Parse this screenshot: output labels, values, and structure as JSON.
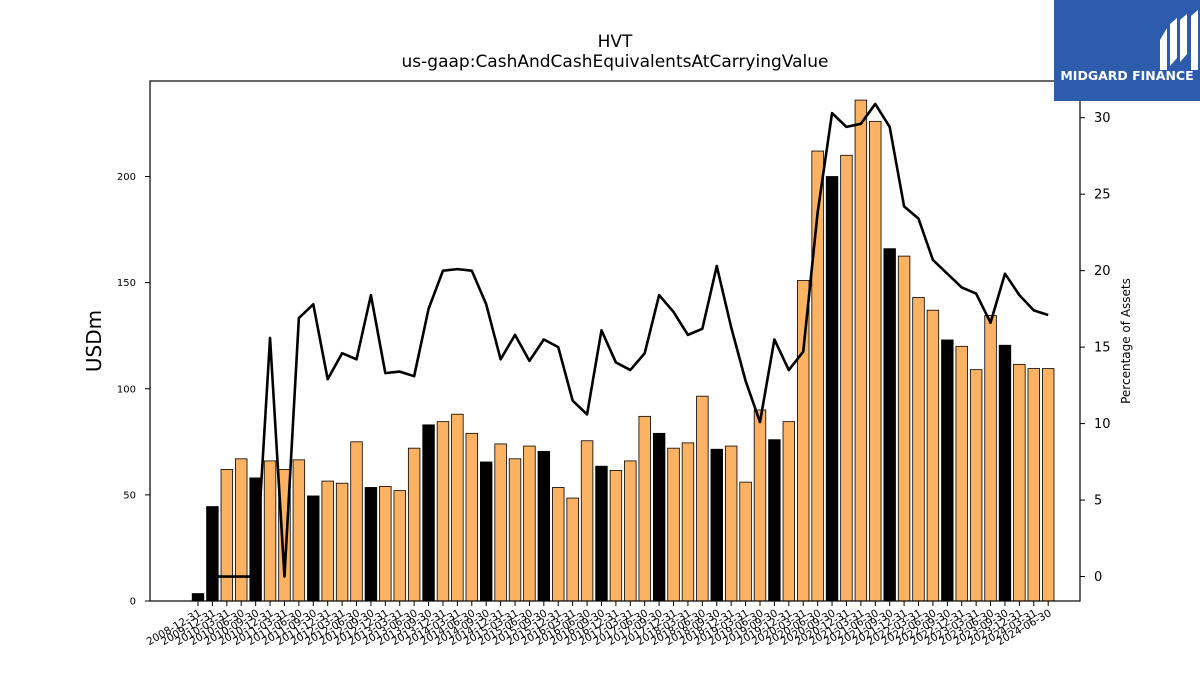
{
  "chart_data": {
    "type": "bar",
    "title": "HVT",
    "subtitle": "us-gaap:CashAndCashEquivalentsAtCarryingValue",
    "ylabel": "USDm",
    "y2label": "Percentage of Assets",
    "ylim": [
      0,
      245
    ],
    "y2lim": [
      -1.6,
      32.4
    ],
    "yticks": [
      0,
      50,
      100,
      150,
      200
    ],
    "y2ticks": [
      0,
      5,
      10,
      15,
      20,
      25,
      30
    ],
    "categories": [
      "2008-12-31",
      "2009-12-31",
      "2010-03-31",
      "2010-06-30",
      "2010-09-30",
      "2010-12-31",
      "2011-03-31",
      "2011-06-30",
      "2011-09-30",
      "2011-12-31",
      "2012-03-31",
      "2012-06-30",
      "2012-09-30",
      "2012-12-31",
      "2013-03-31",
      "2013-06-30",
      "2013-09-30",
      "2013-12-31",
      "2014-03-31",
      "2014-06-30",
      "2014-09-30",
      "2014-12-31",
      "2015-03-31",
      "2015-06-30",
      "2015-09-30",
      "2015-12-31",
      "2016-03-31",
      "2016-06-30",
      "2016-09-30",
      "2016-12-31",
      "2017-03-31",
      "2017-06-30",
      "2017-09-30",
      "2017-12-31",
      "2018-03-31",
      "2018-06-30",
      "2018-09-30",
      "2018-12-31",
      "2019-03-31",
      "2019-06-30",
      "2019-09-30",
      "2019-12-31",
      "2020-03-31",
      "2020-06-30",
      "2020-09-30",
      "2020-12-31",
      "2021-03-31",
      "2021-06-30",
      "2021-09-30",
      "2021-12-31",
      "2022-03-31",
      "2022-06-30",
      "2022-09-30",
      "2022-12-31",
      "2023-03-31",
      "2023-06-30",
      "2023-09-30",
      "2023-12-31",
      "2024-03-31",
      "2024-06-30"
    ],
    "series": [
      {
        "values": [
          3.5,
          44.5,
          62,
          67,
          58,
          66,
          62,
          66.5,
          49.5,
          56.5,
          55.5,
          75,
          53.5,
          54,
          52,
          72,
          83,
          84.5,
          88,
          79,
          65.5,
          74,
          67,
          73,
          70.5,
          53.5,
          48.5,
          75.5,
          63.5,
          61.5,
          66,
          87,
          79,
          72,
          74.5,
          96.5,
          71.5,
          73,
          56,
          90,
          76,
          84.5,
          151,
          212,
          200,
          210,
          236,
          226,
          166,
          162.5,
          143,
          137,
          123,
          120,
          109,
          134.5,
          120.5,
          111.5,
          109.5,
          109.5
        ],
        "colors": [
          "#000000",
          "#000000",
          "#fbb363",
          "#fbb363",
          "#000000",
          "#fbb363",
          "#fbb363",
          "#fbb363",
          "#000000",
          "#fbb363",
          "#fbb363",
          "#fbb363",
          "#000000",
          "#fbb363",
          "#fbb363",
          "#fbb363",
          "#000000",
          "#fbb363",
          "#fbb363",
          "#fbb363",
          "#000000",
          "#fbb363",
          "#fbb363",
          "#fbb363",
          "#000000",
          "#fbb363",
          "#fbb363",
          "#fbb363",
          "#000000",
          "#fbb363",
          "#fbb363",
          "#fbb363",
          "#000000",
          "#fbb363",
          "#fbb363",
          "#fbb363",
          "#000000",
          "#fbb363",
          "#fbb363",
          "#fbb363",
          "#000000",
          "#fbb363",
          "#fbb363",
          "#fbb363",
          "#000000",
          "#fbb363",
          "#fbb363",
          "#fbb363",
          "#000000",
          "#fbb363",
          "#fbb363",
          "#fbb363",
          "#000000",
          "#fbb363",
          "#fbb363",
          "#fbb363",
          "#000000",
          "#fbb363",
          "#fbb363",
          "#fbb363"
        ]
      },
      {
        "axis": "right",
        "type": "line",
        "color": "#000000",
        "values": [
          null,
          0,
          0,
          0,
          0,
          15.6,
          0,
          16.9,
          17.8,
          12.9,
          14.6,
          14.2,
          18.4,
          13.3,
          13.4,
          13.1,
          17.5,
          20,
          20.1,
          20,
          17.8,
          14.2,
          15.8,
          14.1,
          15.5,
          15,
          11.5,
          10.6,
          16.1,
          14,
          13.5,
          14.6,
          18.4,
          17.3,
          15.8,
          16.2,
          20.3,
          16.3,
          12.8,
          10.1,
          15.5,
          13.5,
          14.7,
          23.8,
          30.3,
          29.4,
          29.6,
          30.9,
          29.4,
          24.2,
          23.4,
          20.7,
          19.8,
          18.9,
          18.5,
          16.6,
          19.8,
          18.4,
          17.4,
          17.1
        ]
      }
    ]
  },
  "logo": {
    "brand": "MIDGARD FINANCE"
  }
}
